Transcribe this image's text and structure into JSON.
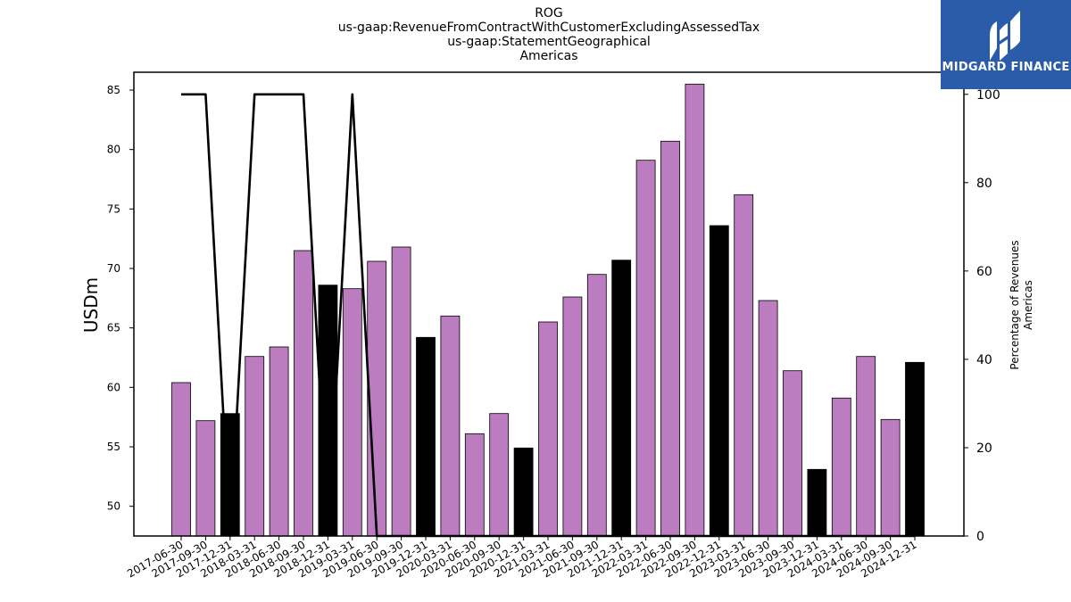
{
  "header": {
    "title_lines": [
      "ROG",
      "us-gaap:RevenueFromContractWithCustomerExcludingAssessedTax",
      "us-gaap:StatementGeographical",
      "Americas"
    ]
  },
  "logo": {
    "text": "MIDGARD FINANCE",
    "icon": "midgard-logo-icon",
    "background": "#2a5caa"
  },
  "chart_data": {
    "type": "bar",
    "ylabel": "USDm",
    "y2label_lines": [
      "Percentage of Revenues",
      "Americas"
    ],
    "ylim": [
      47.5,
      86.5
    ],
    "y2lim": [
      0,
      105
    ],
    "yticks": [
      50,
      55,
      60,
      65,
      70,
      75,
      80,
      85
    ],
    "y2ticks": [
      0,
      20,
      40,
      60,
      80,
      100
    ],
    "colors": {
      "quarter": "#bb7dbf",
      "year_end": "#000000",
      "line": "#000000"
    },
    "categories": [
      "2017-06-30",
      "2017-09-30",
      "2017-12-31",
      "2018-03-31",
      "2018-06-30",
      "2018-09-30",
      "2018-12-31",
      "2019-03-31",
      "2019-06-30",
      "2019-09-30",
      "2019-12-31",
      "2020-03-31",
      "2020-06-30",
      "2020-09-30",
      "2020-12-31",
      "2021-03-31",
      "2021-06-30",
      "2021-09-30",
      "2021-12-31",
      "2022-03-31",
      "2022-06-30",
      "2022-09-30",
      "2022-12-31",
      "2023-03-31",
      "2023-06-30",
      "2023-09-30",
      "2023-12-31",
      "2024-03-31",
      "2024-06-30",
      "2024-09-30",
      "2024-12-31"
    ],
    "series": [
      {
        "values": [
          60.4,
          57.2,
          57.8,
          62.6,
          63.4,
          71.5,
          68.6,
          68.3,
          70.6,
          71.8,
          64.2,
          66.0,
          56.1,
          57.8,
          54.9,
          65.5,
          67.6,
          69.5,
          70.7,
          79.1,
          80.7,
          85.5,
          73.6,
          76.2,
          67.3,
          61.4,
          53.1,
          59.1,
          62.6,
          57.3,
          62.1
        ],
        "year_end": [
          false,
          false,
          true,
          false,
          false,
          false,
          true,
          false,
          false,
          false,
          true,
          false,
          false,
          false,
          true,
          false,
          false,
          false,
          true,
          false,
          false,
          false,
          true,
          false,
          false,
          false,
          true,
          false,
          false,
          false,
          true
        ]
      },
      {
        "type": "line",
        "axis": "right",
        "values": [
          100,
          100,
          0,
          100,
          100,
          100,
          0,
          100,
          0,
          0,
          0,
          0,
          0,
          0,
          0,
          0,
          0,
          0,
          0,
          0,
          0,
          0,
          0,
          0,
          0,
          0,
          0,
          0,
          0,
          0,
          0
        ]
      }
    ]
  }
}
